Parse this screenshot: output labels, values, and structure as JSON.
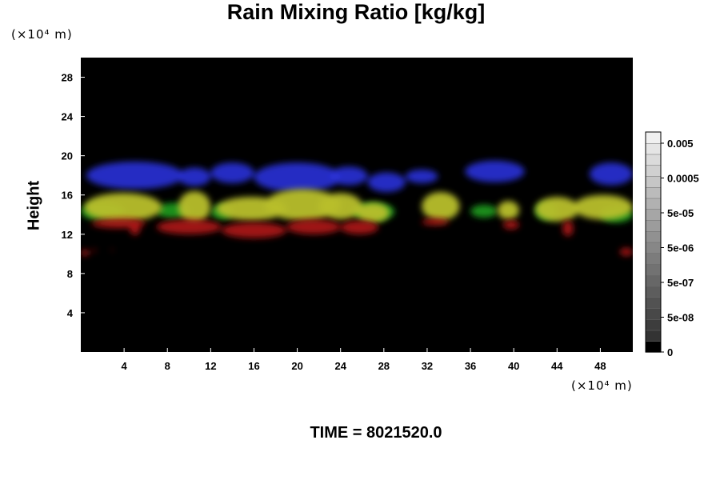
{
  "chart_data": {
    "type": "heatmap",
    "title": "Rain Mixing Ratio [kg/kg]",
    "ylabel": "Height",
    "xlabel": "",
    "x_unit": "(×10⁴ m)",
    "y_unit": "(×10⁴ m)",
    "x_range": [
      0,
      51
    ],
    "y_range": [
      0,
      30
    ],
    "x_ticks": [
      4,
      8,
      12,
      16,
      20,
      24,
      28,
      32,
      36,
      40,
      44,
      48
    ],
    "y_ticks": [
      4,
      8,
      12,
      16,
      20,
      24,
      28
    ],
    "background": "#000000",
    "colorbar": {
      "tick_labels": [
        "0.005",
        "0.0005",
        "5e-05",
        "5e-06",
        "5e-07",
        "5e-08",
        "0"
      ],
      "levels": 20
    },
    "layers": [
      {
        "color": "#2a32d8",
        "regions": [
          {
            "x": [
              0.5,
              9.5
            ],
            "y": [
              16.6,
              19.4
            ]
          },
          {
            "x": [
              9,
              12
            ],
            "y": [
              16.9,
              18.8
            ]
          },
          {
            "x": [
              12,
              16
            ],
            "y": [
              17.2,
              19.3
            ]
          },
          {
            "x": [
              16,
              24
            ],
            "y": [
              16.3,
              19.3
            ]
          },
          {
            "x": [
              23,
              26.5
            ],
            "y": [
              17.0,
              18.9
            ]
          },
          {
            "x": [
              26.5,
              30
            ],
            "y": [
              16.3,
              18.3
            ]
          },
          {
            "x": [
              30,
              33
            ],
            "y": [
              17.2,
              18.6
            ]
          },
          {
            "x": [
              35.5,
              41
            ],
            "y": [
              17.3,
              19.5
            ]
          },
          {
            "x": [
              47,
              51
            ],
            "y": [
              17.0,
              19.3
            ]
          }
        ]
      },
      {
        "color": "#1f9e1f",
        "regions": [
          {
            "x": [
              0,
              4
            ],
            "y": [
              13.4,
              15.2
            ]
          },
          {
            "x": [
              7,
              10
            ],
            "y": [
              13.6,
              15.2
            ]
          },
          {
            "x": [
              12,
              14
            ],
            "y": [
              13.5,
              15.0
            ]
          },
          {
            "x": [
              25,
              29
            ],
            "y": [
              13.4,
              15.2
            ]
          },
          {
            "x": [
              36,
              38.5
            ],
            "y": [
              13.7,
              15.0
            ]
          },
          {
            "x": [
              42,
              44
            ],
            "y": [
              13.5,
              15.2
            ]
          },
          {
            "x": [
              48,
              51
            ],
            "y": [
              13.2,
              14.8
            ]
          }
        ]
      },
      {
        "color": "#b8bf2c",
        "regions": [
          {
            "x": [
              0.3,
              7.5
            ],
            "y": [
              13.3,
              16.2
            ]
          },
          {
            "x": [
              9,
              12
            ],
            "y": [
              13.2,
              16.4
            ]
          },
          {
            "x": [
              12.5,
              19
            ],
            "y": [
              13.4,
              15.8
            ]
          },
          {
            "x": [
              17,
              24
            ],
            "y": [
              13.4,
              16.6
            ]
          },
          {
            "x": [
              22,
              26
            ],
            "y": [
              13.5,
              16.2
            ]
          },
          {
            "x": [
              25.5,
              28.5
            ],
            "y": [
              13.2,
              15.2
            ]
          },
          {
            "x": [
              31.5,
              35
            ],
            "y": [
              13.4,
              16.3
            ]
          },
          {
            "x": [
              38.5,
              40.5
            ],
            "y": [
              13.5,
              15.4
            ]
          },
          {
            "x": [
              42,
              46
            ],
            "y": [
              13.3,
              15.8
            ]
          },
          {
            "x": [
              45.5,
              51
            ],
            "y": [
              13.5,
              16.0
            ]
          }
        ]
      },
      {
        "color": "#b01616",
        "regions": [
          {
            "x": [
              1,
              6
            ],
            "y": [
              12.6,
              13.6
            ]
          },
          {
            "x": [
              4.5,
              5.5
            ],
            "y": [
              11.9,
              13.5
            ]
          },
          {
            "x": [
              7,
              13
            ],
            "y": [
              12.0,
              13.5
            ]
          },
          {
            "x": [
              13,
              19
            ],
            "y": [
              11.6,
              13.2
            ]
          },
          {
            "x": [
              19,
              24
            ],
            "y": [
              12.0,
              13.5
            ]
          },
          {
            "x": [
              24,
              27.5
            ],
            "y": [
              12.0,
              13.4
            ]
          },
          {
            "x": [
              31.5,
              34
            ],
            "y": [
              12.9,
              13.6
            ]
          },
          {
            "x": [
              39,
              40.5
            ],
            "y": [
              12.5,
              13.4
            ]
          },
          {
            "x": [
              44.5,
              45.5
            ],
            "y": [
              11.8,
              13.4
            ]
          },
          {
            "x": [
              0,
              0.8
            ],
            "y": [
              9.8,
              10.4
            ]
          },
          {
            "x": [
              1.1,
              1.4
            ],
            "y": [
              10.2,
              10.5
            ]
          },
          {
            "x": [
              2.8,
              3.0
            ],
            "y": [
              10.3,
              10.5
            ]
          },
          {
            "x": [
              49.8,
              51
            ],
            "y": [
              9.8,
              10.6
            ]
          }
        ]
      }
    ]
  },
  "footer": {
    "time_text": "TIME = 8021520.0"
  }
}
